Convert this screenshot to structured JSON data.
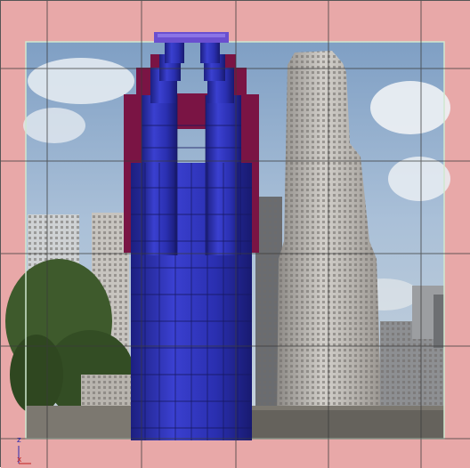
{
  "viewport": {
    "background_color": "#e8a8a8",
    "grid_color": "#3a3a3a",
    "frame_color": "#cfe8cf"
  },
  "model": {
    "primary_color": "#2a2fb0",
    "secondary_color": "#7a1444",
    "top_accent_color": "#6a4fd0"
  },
  "axes": {
    "z_label": "z",
    "x_label": "x",
    "z_color": "#2a2ab0",
    "x_color": "#c02020"
  }
}
